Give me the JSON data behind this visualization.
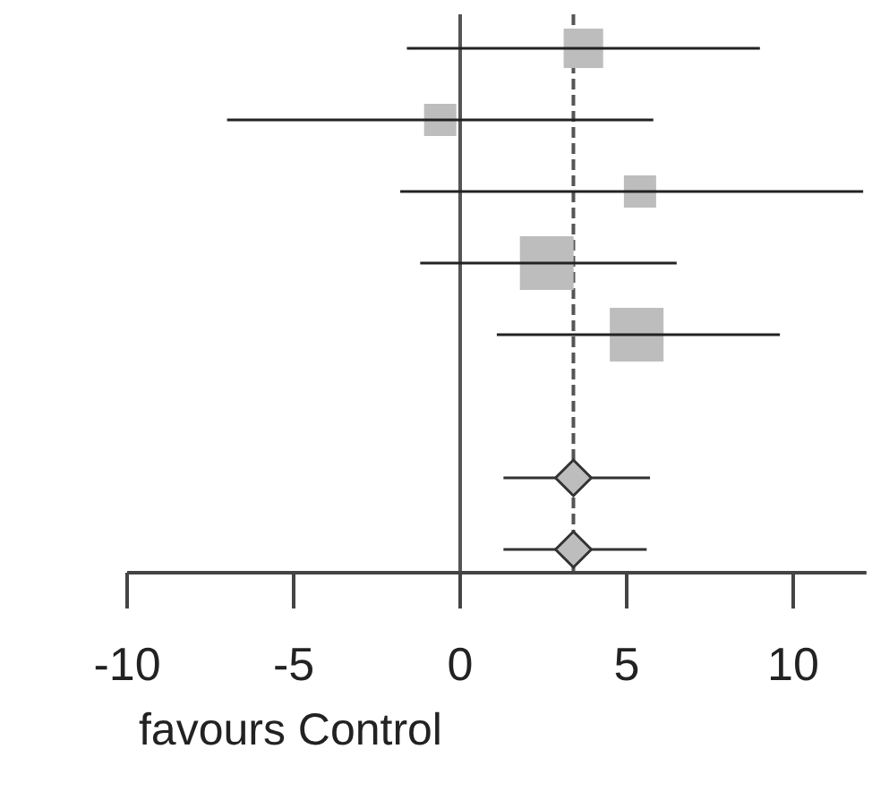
{
  "chart_data": {
    "type": "scatter",
    "orientation": "horizontal",
    "categories": [
      null,
      null,
      null,
      null,
      null,
      null,
      null,
      null
    ],
    "series": [
      {
        "type": "bubble",
        "marker": "square",
        "color": "#bdbdbd",
        "values": [
          3.7,
          -0.6,
          5.4,
          2.6,
          5.3,
          null,
          null,
          null
        ],
        "sizes": [
          0.54,
          0.36,
          0.36,
          1,
          1,
          null,
          null,
          null
        ],
        "errors": [
          [
            -1.6,
            9.0
          ],
          [
            -7.0,
            5.8
          ],
          [
            -1.8,
            12.1
          ],
          [
            -1.2,
            6.5
          ],
          [
            1.1,
            9.6
          ],
          null,
          null,
          null
        ]
      },
      {
        "marker": "diamond",
        "color": "#bdbdbd",
        "values": [
          null,
          null,
          null,
          null,
          null,
          null,
          3.4,
          3.4
        ],
        "errors": [
          null,
          null,
          null,
          null,
          null,
          null,
          [
            1.3,
            5.7
          ],
          [
            1.3,
            5.6
          ]
        ]
      }
    ],
    "xlim": [
      -10,
      12.2
    ],
    "xticks": [
      -10,
      -5,
      0,
      5,
      10
    ],
    "tick_labels": "x",
    "grid": false,
    "ref_lines": [
      {
        "axis": "x",
        "value": 0,
        "color": "#555555",
        "line_style": "solid"
      },
      {
        "axis": "x",
        "value": 3.4,
        "color": "#555555",
        "line_style": "dashed"
      }
    ],
    "annotations": [
      "favours Control"
    ]
  }
}
